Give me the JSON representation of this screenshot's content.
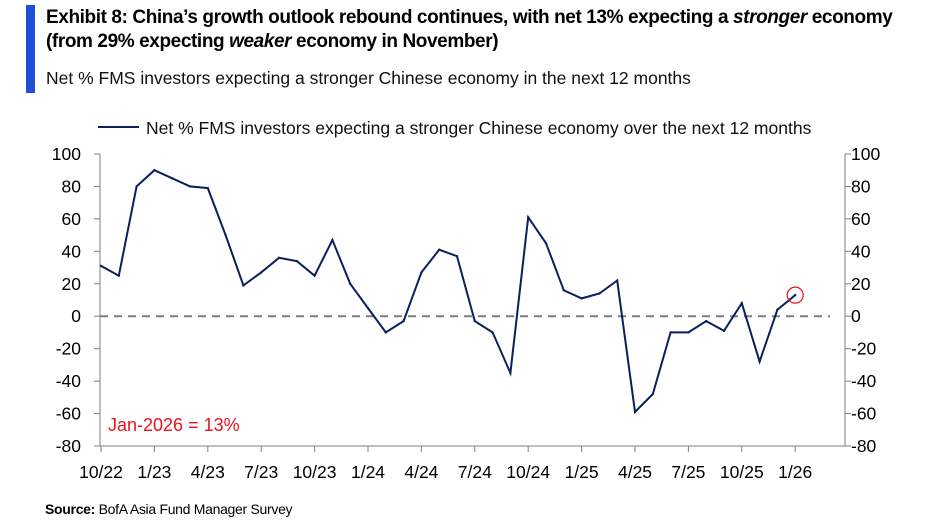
{
  "header": {
    "title_part1": "Exhibit 8: China’s growth outlook rebound continues, with net 13% expecting a ",
    "title_emph1": "stronger",
    "title_part2": " economy (from 29% expecting ",
    "title_emph2": "weaker",
    "title_part3": " economy in November)",
    "subtitle": "Net % FMS investors expecting a stronger Chinese economy in the next 12 months",
    "accent_color": "#1f4fd6"
  },
  "footer": {
    "source_label": "Source:",
    "source_text": " BofA Asia Fund Manager Survey"
  },
  "chart_data": {
    "type": "line",
    "title": "",
    "legend_label": "Net % FMS investors expecting a stronger Chinese economy over the next 12 months",
    "legend_position": "top",
    "x_tick_labels": [
      "10/22",
      "1/23",
      "4/23",
      "7/23",
      "10/23",
      "1/24",
      "4/24",
      "7/24",
      "10/24",
      "1/25",
      "4/25",
      "7/25",
      "10/25",
      "1/26"
    ],
    "ylim": [
      -80,
      100
    ],
    "y_ticks": [
      100,
      80,
      60,
      40,
      20,
      0,
      -20,
      -40,
      -60,
      -80
    ],
    "y_tick_labels": [
      "100",
      "80",
      "60",
      "40",
      "20",
      "0",
      "-20",
      "-40",
      "-60",
      "-80"
    ],
    "secondary_y_axis": true,
    "zero_line": "dashed",
    "series": [
      {
        "name": "Net % FMS investors expecting a stronger Chinese economy over the next 12 months",
        "color": "#0a1f5c",
        "values": [
          31,
          25,
          80,
          90,
          85,
          80,
          79,
          50,
          19,
          27,
          36,
          34,
          25,
          47,
          20,
          5,
          -10,
          -3,
          27,
          41,
          37,
          -3,
          -10,
          -35,
          61,
          45,
          16,
          11,
          14,
          22,
          -59,
          -48,
          -10,
          -10,
          -3,
          -9,
          8,
          -28,
          4,
          13
        ]
      }
    ],
    "annotation": {
      "text": "Jan-2026 = 13%",
      "value": 13,
      "color": "#e8141e"
    }
  }
}
